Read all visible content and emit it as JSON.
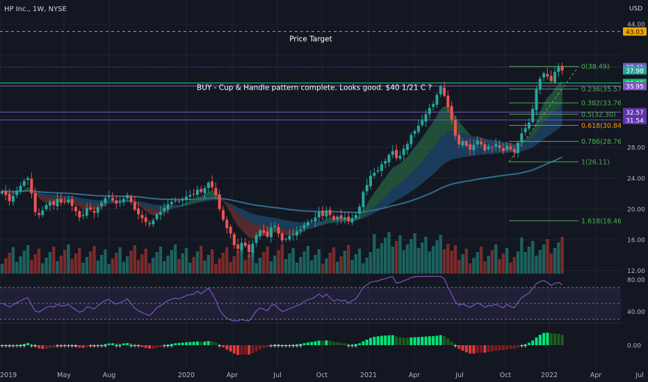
{
  "header": {
    "symbol": "HP Inc., 1W, NYSE",
    "currency": "USD"
  },
  "colors": {
    "background": "#131722",
    "up": "#26a69a",
    "down": "#ef5350",
    "green_line": "#00e676",
    "purple": "#7e57c2",
    "target": "#f0a500",
    "fib_text": "#4caf50",
    "fib_0618_text": "#ff9800",
    "rsi": "#7e57c2"
  },
  "annotations": {
    "price_target": "Price Target",
    "buy_note": "BUY - Cup & Handle pattern complete.  Looks good. $40 1/21 C ?"
  },
  "chart_data": {
    "type": "candlestick",
    "price_axis": {
      "ylim": [
        11.5,
        45.5
      ],
      "ticks": [
        "12.00",
        "16.00",
        "20.00",
        "24.00",
        "28.00",
        "44.00"
      ]
    },
    "x_ticks": [
      "2019",
      "May",
      "Aug",
      "2020",
      "Apr",
      "Jul",
      "Oct",
      "2021",
      "Apr",
      "Jul",
      "Oct",
      "2022",
      "Apr",
      "Jul"
    ],
    "price_labels": [
      {
        "value": 43.03,
        "text": "43.03",
        "color": "#f0a500"
      },
      {
        "value": 38.41,
        "text": "38.41",
        "color": "#7e57c2"
      },
      {
        "value": 37.98,
        "text": "37.98",
        "color": "#26a69a"
      },
      {
        "value": 36.35,
        "text": "36.35",
        "color": "#00c853"
      },
      {
        "value": 35.95,
        "text": "35.95",
        "color": "#7e57c2"
      },
      {
        "value": 32.57,
        "text": "32.57",
        "color": "#5e35b1"
      },
      {
        "value": 31.54,
        "text": "31.54",
        "color": "#5e35b1"
      }
    ],
    "horizontal_lines": [
      {
        "value": 43.03,
        "style": "dashed",
        "color": "#f0a500"
      },
      {
        "value": 38.41,
        "style": "dotted",
        "color": "#7e57c2"
      },
      {
        "value": 36.35,
        "style": "solid",
        "color": "#00e676"
      },
      {
        "value": 35.95,
        "style": "solid",
        "color": "#7e57c2"
      },
      {
        "value": 32.57,
        "style": "solid",
        "color": "#7e57c2"
      },
      {
        "value": 31.54,
        "style": "solid",
        "color": "#7e57c2"
      }
    ],
    "fibonacci": [
      {
        "label": "0(38.49)",
        "value": 38.49
      },
      {
        "label": "0.236(35.57)",
        "value": 35.57
      },
      {
        "label": "0.382(33.76)",
        "value": 33.76
      },
      {
        "label": "0.5(32.30)",
        "value": 32.3
      },
      {
        "label": "0.618(30.84)",
        "value": 30.84
      },
      {
        "label": "0.786(28.76)",
        "value": 28.76
      },
      {
        "label": "1(26.11)",
        "value": 26.11
      },
      {
        "label": "1.618(18.46)",
        "value": 18.46
      }
    ],
    "closes": [
      22.3,
      21.8,
      21.0,
      21.7,
      22.4,
      23.0,
      23.6,
      24.0,
      22.0,
      19.6,
      19.2,
      19.8,
      20.5,
      20.9,
      20.5,
      21.3,
      20.8,
      20.9,
      21.2,
      20.4,
      19.7,
      18.9,
      19.2,
      20.1,
      19.9,
      19.5,
      20.2,
      20.8,
      21.4,
      21.6,
      21.1,
      20.7,
      21.0,
      21.3,
      21.8,
      20.9,
      19.9,
      19.3,
      18.8,
      18.3,
      18.0,
      18.5,
      19.3,
      19.6,
      20.1,
      20.6,
      20.9,
      21.1,
      21.0,
      21.3,
      21.6,
      21.8,
      21.9,
      22.5,
      22.2,
      22.7,
      23.4,
      22.8,
      21.8,
      20.0,
      18.6,
      17.5,
      16.8,
      15.3,
      14.8,
      15.6,
      15.2,
      14.4,
      15.5,
      16.6,
      17.2,
      16.9,
      16.4,
      17.6,
      17.8,
      16.8,
      15.9,
      16.1,
      16.5,
      16.7,
      17.1,
      17.3,
      17.9,
      18.3,
      18.5,
      18.9,
      19.6,
      19.1,
      19.8,
      19.2,
      18.6,
      19.0,
      18.7,
      18.9,
      18.4,
      18.8,
      19.2,
      20.3,
      22.2,
      23.1,
      24.3,
      24.7,
      25.0,
      25.8,
      26.2,
      27.0,
      27.5,
      26.6,
      26.9,
      27.8,
      28.4,
      29.6,
      30.1,
      30.8,
      31.5,
      32.3,
      33.1,
      33.6,
      34.8,
      35.9,
      34.7,
      33.2,
      31.6,
      29.5,
      28.4,
      28.8,
      28.2,
      27.7,
      28.3,
      28.9,
      28.4,
      27.6,
      28.1,
      28.0,
      28.4,
      27.9,
      27.5,
      28.2,
      27.7,
      27.4,
      28.6,
      29.8,
      30.5,
      31.2,
      33.0,
      35.5,
      36.9,
      37.6,
      37.2,
      36.6,
      37.8,
      38.4,
      37.98
    ],
    "rsi": {
      "ylim": [
        28,
        84
      ],
      "ticks": [
        "80.00",
        "40.00"
      ],
      "upper": 70,
      "mid": 50,
      "lower": 30
    },
    "macd": {
      "ticks": [
        "0.00"
      ]
    }
  }
}
